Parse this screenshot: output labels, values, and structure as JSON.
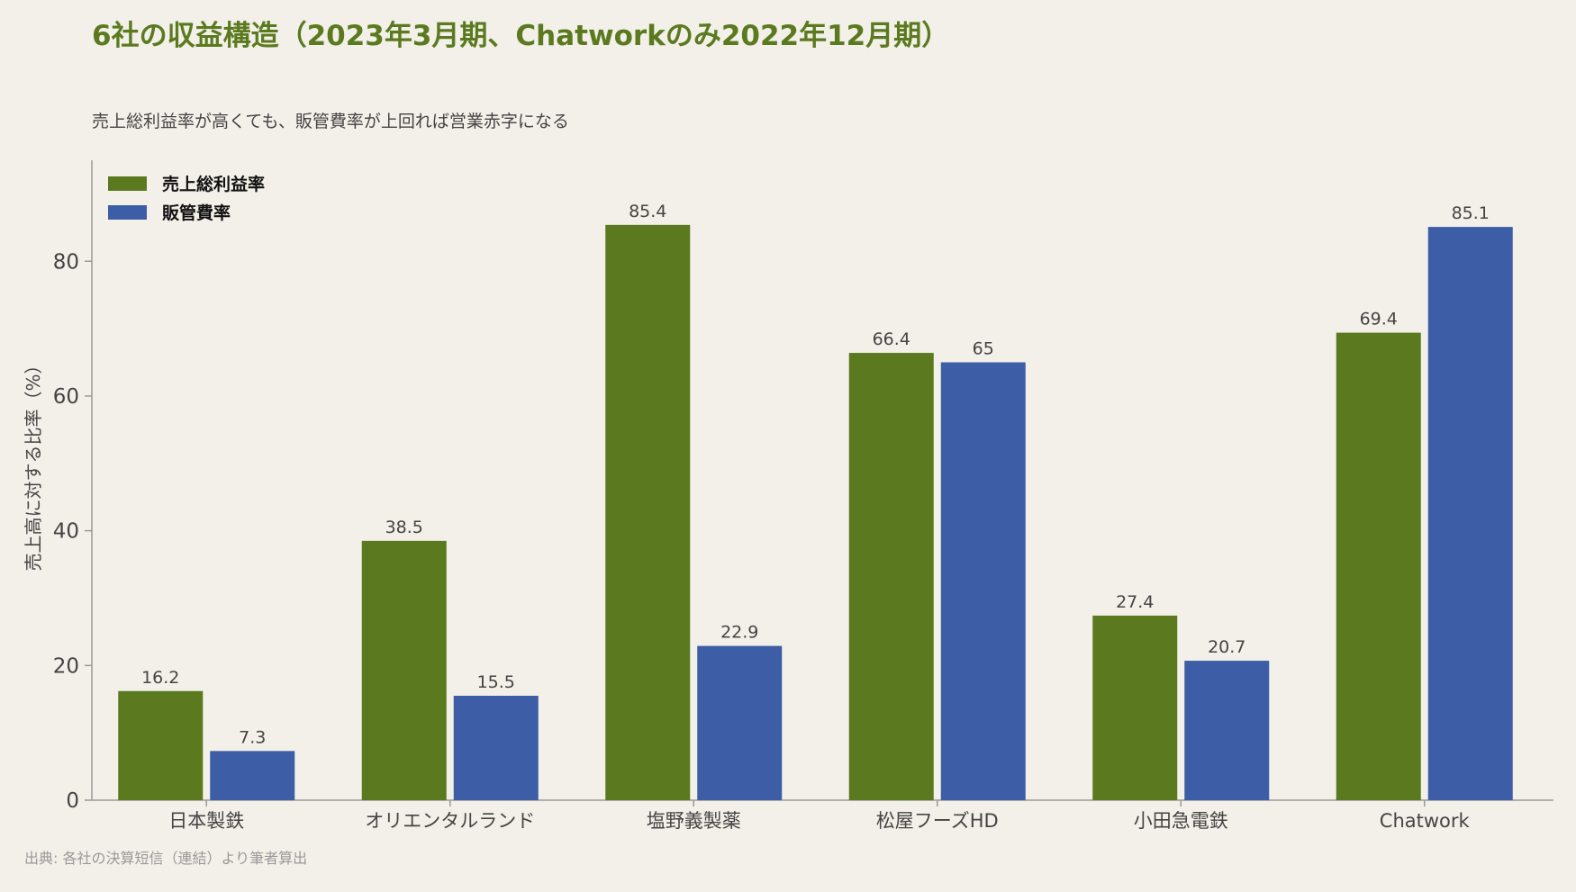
{
  "colors": {
    "background": "#f3f0e9",
    "title": "#5b7a1f",
    "gross_margin": "#5b7a1f",
    "sga_ratio": "#3d5ea6",
    "axis": "#999999",
    "text": "#444444",
    "muted": "#999999"
  },
  "chart_data": {
    "type": "bar",
    "title": "6社の収益構造（2023年3月期、Chatworkのみ2022年12月期）",
    "subtitle": "売上総利益率が高くても、販管費率が上回れば営業赤字になる",
    "source": "出典: 各社の決算短信（連結）より筆者算出",
    "xlabel": "",
    "ylabel": "売上高に対する比率（%）",
    "ylim": [
      0,
      95
    ],
    "yticks": [
      0,
      20,
      40,
      60,
      80
    ],
    "grid": false,
    "legend_position": "top-left",
    "categories": [
      "日本製鉄",
      "オリエンタルランド",
      "塩野義製薬",
      "松屋フーズHD",
      "小田急電鉄",
      "Chatwork"
    ],
    "series": [
      {
        "name": "売上総利益率",
        "values": [
          16.2,
          38.5,
          85.4,
          66.4,
          27.4,
          69.4
        ],
        "labels": [
          "16.2",
          "38.5",
          "85.4",
          "66.4",
          "27.4",
          "69.4"
        ]
      },
      {
        "name": "販管費率",
        "values": [
          7.3,
          15.5,
          22.9,
          65,
          20.7,
          85.1
        ],
        "labels": [
          "7.3",
          "15.5",
          "22.9",
          "65",
          "20.7",
          "85.1"
        ]
      }
    ]
  }
}
